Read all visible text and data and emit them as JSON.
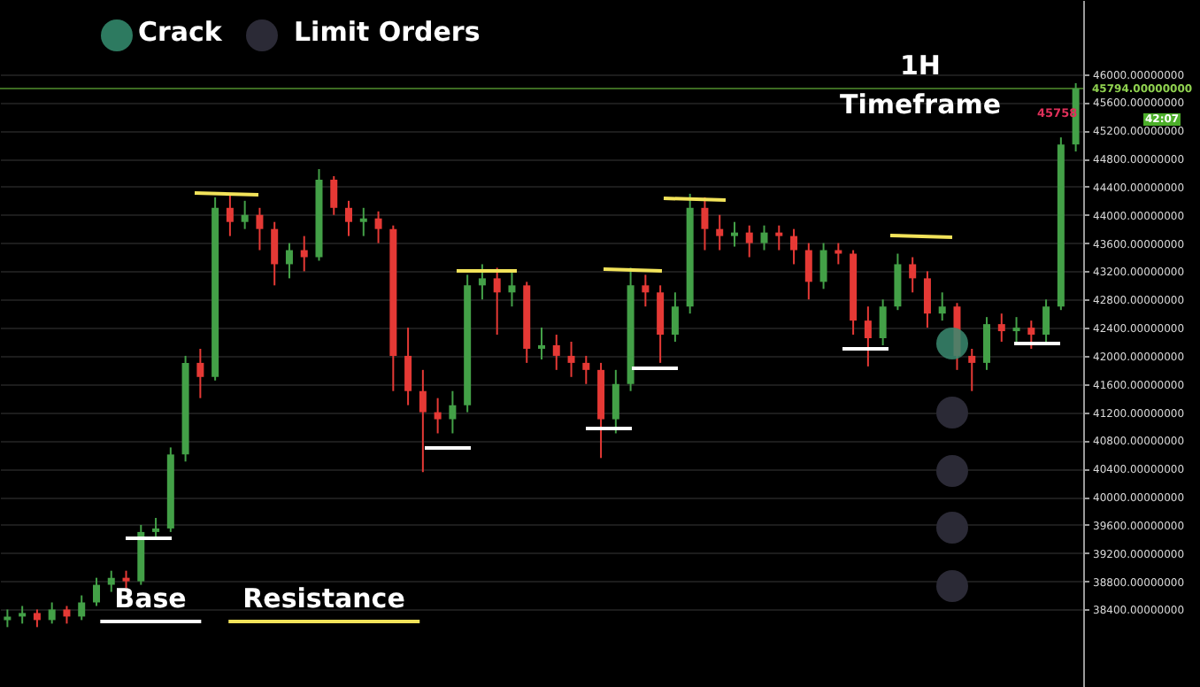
{
  "chart_data": {
    "type": "candlestick",
    "categories": [
      null,
      null,
      null,
      null,
      null,
      null,
      null,
      null,
      null,
      null,
      null,
      null,
      null,
      null,
      null,
      null,
      null,
      null,
      null,
      null,
      null,
      null,
      null,
      null,
      null,
      null,
      null,
      null,
      null,
      null,
      null,
      null,
      null,
      null,
      null,
      null,
      null,
      null,
      null,
      null,
      null,
      null,
      null,
      null,
      null,
      null,
      null,
      null,
      null,
      null,
      null,
      null,
      null,
      null,
      null,
      null,
      null,
      null,
      null,
      null,
      null,
      null,
      null,
      null,
      null,
      null,
      null,
      null,
      null,
      null,
      null,
      null,
      null
    ],
    "ohlc": [
      [
        38250,
        38400,
        38150,
        38300
      ],
      [
        38300,
        38450,
        38200,
        38350
      ],
      [
        38350,
        38400,
        38150,
        38250
      ],
      [
        38250,
        38500,
        38200,
        38400
      ],
      [
        38400,
        38450,
        38200,
        38300
      ],
      [
        38300,
        38600,
        38250,
        38500
      ],
      [
        38500,
        38850,
        38450,
        38750
      ],
      [
        38750,
        38950,
        38650,
        38850
      ],
      [
        38850,
        38950,
        38700,
        38800
      ],
      [
        38800,
        39600,
        38750,
        39500
      ],
      [
        39500,
        39700,
        39400,
        39550
      ],
      [
        39550,
        40700,
        39500,
        40600
      ],
      [
        40600,
        42000,
        40500,
        41900
      ],
      [
        41900,
        42100,
        41400,
        41700
      ],
      [
        41700,
        44250,
        41650,
        44100
      ],
      [
        44100,
        44300,
        43700,
        43900
      ],
      [
        43900,
        44200,
        43800,
        44000
      ],
      [
        44000,
        44100,
        43500,
        43800
      ],
      [
        43800,
        43900,
        43000,
        43300
      ],
      [
        43300,
        43600,
        43100,
        43500
      ],
      [
        43500,
        43700,
        43200,
        43400
      ],
      [
        43400,
        44650,
        43350,
        44500
      ],
      [
        44500,
        44550,
        44000,
        44100
      ],
      [
        44100,
        44200,
        43700,
        43900
      ],
      [
        43900,
        44100,
        43700,
        43950
      ],
      [
        43950,
        44050,
        43600,
        43800
      ],
      [
        43800,
        43850,
        41500,
        42000
      ],
      [
        42000,
        42400,
        41300,
        41500
      ],
      [
        41500,
        41800,
        40350,
        41200
      ],
      [
        41200,
        41400,
        40900,
        41100
      ],
      [
        41100,
        41500,
        40900,
        41300
      ],
      [
        41300,
        43150,
        41200,
        43000
      ],
      [
        43000,
        43300,
        42800,
        43100
      ],
      [
        43100,
        43250,
        42300,
        42900
      ],
      [
        42900,
        43200,
        42700,
        43000
      ],
      [
        43000,
        43050,
        41900,
        42100
      ],
      [
        42100,
        42400,
        41950,
        42150
      ],
      [
        42150,
        42300,
        41800,
        42000
      ],
      [
        42000,
        42200,
        41700,
        41900
      ],
      [
        41900,
        42000,
        41600,
        41800
      ],
      [
        41800,
        41900,
        40550,
        41100
      ],
      [
        41100,
        41800,
        40900,
        41600
      ],
      [
        41600,
        43250,
        41500,
        43000
      ],
      [
        43000,
        43150,
        42700,
        42900
      ],
      [
        42900,
        43000,
        41900,
        42300
      ],
      [
        42300,
        42900,
        42200,
        42700
      ],
      [
        42700,
        44300,
        42600,
        44100
      ],
      [
        44100,
        44250,
        43500,
        43800
      ],
      [
        43800,
        44000,
        43500,
        43700
      ],
      [
        43700,
        43900,
        43550,
        43750
      ],
      [
        43750,
        43850,
        43400,
        43600
      ],
      [
        43600,
        43850,
        43500,
        43750
      ],
      [
        43750,
        43850,
        43500,
        43700
      ],
      [
        43700,
        43800,
        43300,
        43500
      ],
      [
        43500,
        43600,
        42800,
        43050
      ],
      [
        43050,
        43600,
        42950,
        43500
      ],
      [
        43500,
        43600,
        43300,
        43450
      ],
      [
        43450,
        43500,
        42300,
        42500
      ],
      [
        42500,
        42700,
        41850,
        42250
      ],
      [
        42250,
        42800,
        42150,
        42700
      ],
      [
        42700,
        43450,
        42650,
        43300
      ],
      [
        43300,
        43400,
        42900,
        43100
      ],
      [
        43100,
        43200,
        42400,
        42600
      ],
      [
        42600,
        42900,
        42500,
        42700
      ],
      [
        42700,
        42750,
        41800,
        42000
      ],
      [
        42000,
        42100,
        41500,
        41900
      ],
      [
        41900,
        42550,
        41800,
        42450
      ],
      [
        42450,
        42600,
        42200,
        42350
      ],
      [
        42350,
        42550,
        42150,
        42400
      ],
      [
        42400,
        42500,
        42100,
        42300
      ],
      [
        42300,
        42800,
        42200,
        42700
      ],
      [
        42700,
        45100,
        42650,
        45000
      ],
      [
        45000,
        45870,
        44900,
        45794
      ]
    ],
    "ylim": [
      37300,
      47050
    ],
    "yticks": [
      {
        "value": 46000,
        "label": "46000.00000000"
      },
      {
        "value": 45600,
        "label": "45600.00000000"
      },
      {
        "value": 45200,
        "label": "45200.00000000"
      },
      {
        "value": 44800,
        "label": "44800.00000000"
      },
      {
        "value": 44400,
        "label": "44400.00000000"
      },
      {
        "value": 44000,
        "label": "44000.00000000"
      },
      {
        "value": 43600,
        "label": "43600.00000000"
      },
      {
        "value": 43200,
        "label": "43200.00000000"
      },
      {
        "value": 42800,
        "label": "42800.00000000"
      },
      {
        "value": 42400,
        "label": "42400.00000000"
      },
      {
        "value": 42000,
        "label": "42000.00000000"
      },
      {
        "value": 41600,
        "label": "41600.00000000"
      },
      {
        "value": 41200,
        "label": "41200.00000000"
      },
      {
        "value": 40800,
        "label": "40800.00000000"
      },
      {
        "value": 40400,
        "label": "40400.00000000"
      },
      {
        "value": 40000,
        "label": "40000.00000000"
      },
      {
        "value": 39600,
        "label": "39600.00000000"
      },
      {
        "value": 39200,
        "label": "39200.00000000"
      },
      {
        "value": 38800,
        "label": "38800.00000000"
      },
      {
        "value": 38400,
        "label": "38400.00000000"
      }
    ],
    "grid": "y",
    "ref_lines": [
      {
        "axis": "y",
        "value": 45794,
        "label": "45794.00000000",
        "color": "#3d6b22"
      }
    ],
    "annotations": [
      "Crack",
      "Limit Orders",
      "1H",
      "Timeframe",
      "Base",
      "Resistance",
      "45758",
      "42:07"
    ]
  }
}
